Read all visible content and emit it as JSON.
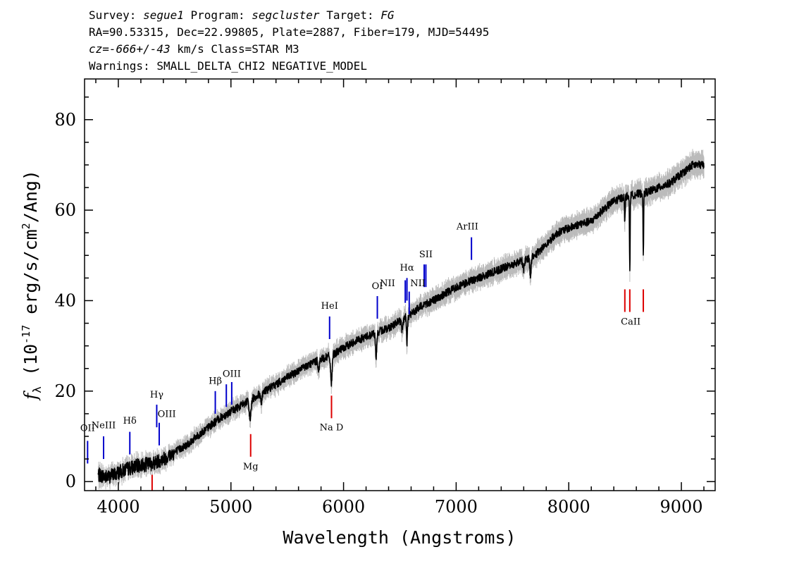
{
  "header": {
    "survey_key": "Survey:",
    "survey": "segue1",
    "program_key": "Program:",
    "program": "segcluster",
    "target_key": "Target:",
    "target": "FG",
    "line2": "RA=90.53315, Dec=22.99805, Plate=2887, Fiber=179, MJD=54495",
    "cz_key": "cz=",
    "cz_value": "-666+/-43",
    "cz_tail": " km/s Class=STAR M3",
    "warnings": "Warnings: SMALL_DELTA_CHI2 NEGATIVE_MODEL"
  },
  "chart_data": {
    "type": "line",
    "xlabel": "Wavelength (Angstroms)",
    "ylabel": "f_λ (10^-17 erg/s/cm^2/Ang)",
    "ylabel_parts": {
      "sym": "f",
      "sub": "λ",
      "pre": " (10",
      "exp1": "-17",
      "mid": " erg/s/cm",
      "exp2": "2",
      "post": "/Ang)"
    },
    "xlim": [
      3700,
      9300
    ],
    "ylim": [
      -2,
      89
    ],
    "xticks": [
      4000,
      5000,
      6000,
      7000,
      8000,
      9000
    ],
    "yticks": [
      0,
      20,
      40,
      60,
      80
    ],
    "grid": false,
    "colors": {
      "flux": "#000000",
      "error": "#bbbbbb",
      "emission": "#0000cc",
      "absorption": "#dd0000"
    },
    "continuum_anchors": [
      [
        3820,
        1.5
      ],
      [
        3900,
        1.0
      ],
      [
        4000,
        2.0
      ],
      [
        4100,
        3.0
      ],
      [
        4200,
        3.6
      ],
      [
        4300,
        4.0
      ],
      [
        4400,
        5.0
      ],
      [
        4500,
        6.5
      ],
      [
        4600,
        8.0
      ],
      [
        4700,
        10.0
      ],
      [
        4800,
        12.0
      ],
      [
        4900,
        14.0
      ],
      [
        5000,
        15.5
      ],
      [
        5100,
        17.0
      ],
      [
        5200,
        18.5
      ],
      [
        5300,
        20.0
      ],
      [
        5400,
        21.5
      ],
      [
        5500,
        23.0
      ],
      [
        5600,
        24.5
      ],
      [
        5700,
        26.0
      ],
      [
        5800,
        27.0
      ],
      [
        5900,
        28.0
      ],
      [
        6000,
        29.5
      ],
      [
        6100,
        31.0
      ],
      [
        6200,
        32.0
      ],
      [
        6300,
        33.0
      ],
      [
        6400,
        34.0
      ],
      [
        6500,
        35.5
      ],
      [
        6600,
        37.0
      ],
      [
        6700,
        39.0
      ],
      [
        6800,
        40.0
      ],
      [
        6900,
        41.5
      ],
      [
        7000,
        43.0
      ],
      [
        7100,
        44.0
      ],
      [
        7200,
        45.0
      ],
      [
        7300,
        46.0
      ],
      [
        7400,
        47.0
      ],
      [
        7500,
        48.0
      ],
      [
        7600,
        49.0
      ],
      [
        7700,
        50.0
      ],
      [
        7800,
        52.5
      ],
      [
        7900,
        55.0
      ],
      [
        8000,
        56.0
      ],
      [
        8100,
        57.0
      ],
      [
        8200,
        57.5
      ],
      [
        8300,
        60.0
      ],
      [
        8400,
        62.0
      ],
      [
        8500,
        63.0
      ],
      [
        8600,
        63.5
      ],
      [
        8700,
        64.0
      ],
      [
        8800,
        65.0
      ],
      [
        8900,
        66.0
      ],
      [
        9000,
        68.0
      ],
      [
        9100,
        70.0
      ],
      [
        9200,
        70.0
      ]
    ],
    "absorption_dips": [
      [
        5170,
        4.0,
        12
      ],
      [
        5270,
        2.0,
        8
      ],
      [
        5780,
        2.0,
        8
      ],
      [
        5892,
        6.0,
        10
      ],
      [
        6290,
        5.5,
        8
      ],
      [
        6520,
        2.5,
        8
      ],
      [
        6563,
        6.0,
        6
      ],
      [
        7600,
        2.0,
        10
      ],
      [
        7660,
        4.0,
        8
      ],
      [
        8498,
        6.0,
        4
      ],
      [
        8542,
        17.0,
        4
      ],
      [
        8662,
        14.0,
        4
      ]
    ],
    "emission_lines": [
      {
        "label": "OII",
        "x": 3727,
        "y0": 4,
        "y1": 9,
        "lx": 3727,
        "ly": 11.2
      },
      {
        "label": "NeIII",
        "x": 3869,
        "y0": 5,
        "y1": 10,
        "lx": 3869,
        "ly": 11.8
      },
      {
        "label": "Hδ",
        "x": 4102,
        "y0": 6,
        "y1": 11,
        "lx": 4102,
        "ly": 12.8
      },
      {
        "label": "Hγ",
        "x": 4341,
        "y0": 12,
        "y1": 17,
        "lx": 4341,
        "ly": 18.6
      },
      {
        "label": "OIII",
        "x": 4363,
        "y0": 8,
        "y1": 13,
        "lx": 4430,
        "ly": 14.3
      },
      {
        "label": "Hβ",
        "x": 4861,
        "y0": 15,
        "y1": 20,
        "lx": 4861,
        "ly": 21.6
      },
      {
        "label": "OIII",
        "x": 4959,
        "y0": 16.5,
        "y1": 21.5,
        "lx": 5007,
        "ly": 23.2
      },
      {
        "label": "OIII",
        "x": 5007,
        "y0": 17,
        "y1": 22,
        "lx": null,
        "ly": null
      },
      {
        "label": "HeI",
        "x": 5876,
        "y0": 31.5,
        "y1": 36.5,
        "lx": 5876,
        "ly": 38.2
      },
      {
        "label": "OI",
        "x": 6300,
        "y0": 36,
        "y1": 41,
        "lx": 6300,
        "ly": 42.6
      },
      {
        "label": "NII",
        "x": 6548,
        "y0": 39.5,
        "y1": 44.5,
        "lx": 6390,
        "ly": 43.2
      },
      {
        "label": "Hα",
        "x": 6563,
        "y0": 40,
        "y1": 45,
        "lx": 6563,
        "ly": 46.6
      },
      {
        "label": "NII",
        "x": 6583,
        "y0": 37,
        "y1": 42,
        "lx": 6660,
        "ly": 43.2
      },
      {
        "label": "SII",
        "x": 6716,
        "y0": 43,
        "y1": 48,
        "lx": 6731,
        "ly": 49.6
      },
      {
        "label": "SII",
        "x": 6731,
        "y0": 43,
        "y1": 48,
        "lx": null,
        "ly": null
      },
      {
        "label": "ArIII",
        "x": 7136,
        "y0": 49,
        "y1": 54,
        "lx": 7100,
        "ly": 55.7
      }
    ],
    "absorption_lines": [
      {
        "label": "",
        "x": 4300,
        "y0": -2,
        "y1": 1.5,
        "lx": null,
        "ly": null
      },
      {
        "label": "Mg",
        "x": 5175,
        "y0": 5.5,
        "y1": 10.5,
        "lx": 5175,
        "ly": 2.7
      },
      {
        "label": "Na  D",
        "x": 5893,
        "y0": 14,
        "y1": 19,
        "lx": 5893,
        "ly": 11.3
      },
      {
        "label": "CaII",
        "x": 8498,
        "y0": 37.5,
        "y1": 42.5,
        "lx": 8550,
        "ly": 34.7
      },
      {
        "label": "",
        "x": 8542,
        "y0": 37.5,
        "y1": 42.5,
        "lx": null,
        "ly": null
      },
      {
        "label": "",
        "x": 8662,
        "y0": 37.5,
        "y1": 42.5,
        "lx": null,
        "ly": null
      }
    ]
  }
}
